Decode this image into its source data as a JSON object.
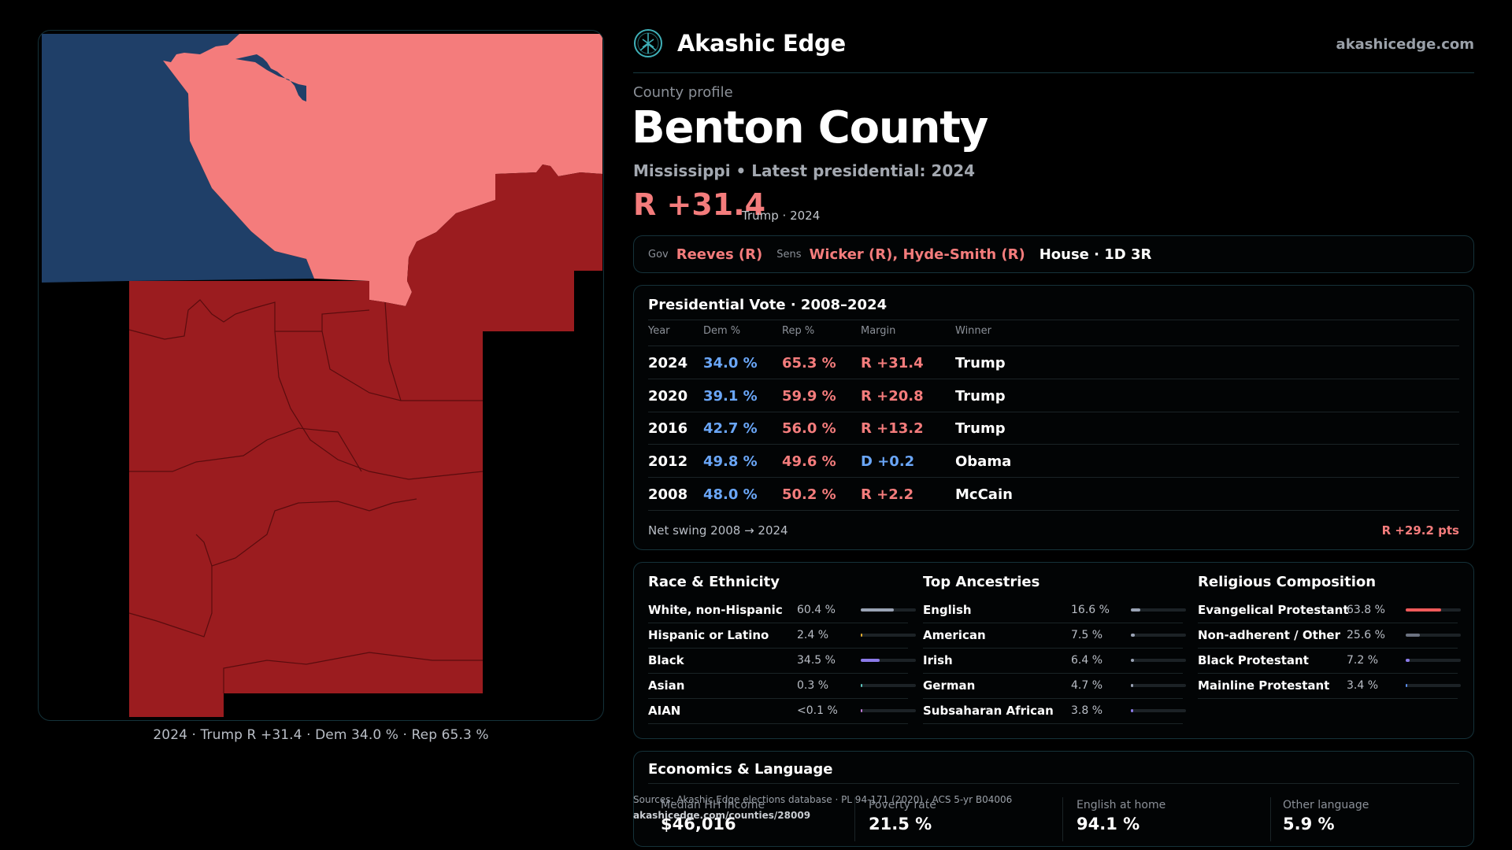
{
  "brand": {
    "name": "Akashic Edge",
    "url": "akashicedge.com",
    "logo_icon": "tree-of-life-icon"
  },
  "profile": {
    "kicker": "County profile",
    "county": "Benton County",
    "subtitle": "Mississippi • Latest presidential: 2024",
    "margin": "R +31.4",
    "margin_note": "Trump · 2024"
  },
  "officials": {
    "gov_label": "Gov",
    "gov": "Reeves (R)",
    "sens_label": "Sens",
    "sens": "Wicker (R), Hyde-Smith (R)",
    "house": "House · 1D 3R"
  },
  "presidential": {
    "title": "Presidential Vote · 2008–2024",
    "headers": [
      "Year",
      "Dem %",
      "Rep %",
      "Margin",
      "Winner"
    ],
    "rows": [
      {
        "year": "2024",
        "dem": "34.0 %",
        "rep": "65.3 %",
        "margin": "R +31.4",
        "winner": "Trump",
        "party": "R"
      },
      {
        "year": "2020",
        "dem": "39.1 %",
        "rep": "59.9 %",
        "margin": "R +20.8",
        "winner": "Trump",
        "party": "R"
      },
      {
        "year": "2016",
        "dem": "42.7 %",
        "rep": "56.0 %",
        "margin": "R +13.2",
        "winner": "Trump",
        "party": "R"
      },
      {
        "year": "2012",
        "dem": "49.8 %",
        "rep": "49.6 %",
        "margin": "D +0.2",
        "winner": "Obama",
        "party": "D"
      },
      {
        "year": "2008",
        "dem": "48.0 %",
        "rep": "50.2 %",
        "margin": "R +2.2",
        "winner": "McCain",
        "party": "R"
      }
    ],
    "swing_label": "Net swing 2008 → 2024",
    "swing_value": "R +29.2 pts"
  },
  "demographics": {
    "race": {
      "title": "Race & Ethnicity",
      "items": [
        {
          "label": "White, non-Hispanic",
          "value": "60.4 %",
          "share": 0.604,
          "color": "#9aa3b5"
        },
        {
          "label": "Hispanic or Latino",
          "value": "2.4 %",
          "share": 0.024,
          "color": "#e8b030"
        },
        {
          "label": "Black",
          "value": "34.5 %",
          "share": 0.345,
          "color": "#8b7ae8"
        },
        {
          "label": "Asian",
          "value": "0.3 %",
          "share": 0.003,
          "color": "#5fc8c0"
        },
        {
          "label": "AIAN",
          "value": "<0.1 %",
          "share": 0.0,
          "color": "#c07ad8"
        }
      ]
    },
    "ancestry": {
      "title": "Top Ancestries",
      "items": [
        {
          "label": "English",
          "value": "16.6 %",
          "share": 0.166,
          "color": "#9aa3b5"
        },
        {
          "label": "American",
          "value": "7.5 %",
          "share": 0.075,
          "color": "#9aa3b5"
        },
        {
          "label": "Irish",
          "value": "6.4 %",
          "share": 0.064,
          "color": "#9aa3b5"
        },
        {
          "label": "German",
          "value": "4.7 %",
          "share": 0.047,
          "color": "#9aa3b5"
        },
        {
          "label": "Subsaharan African",
          "value": "3.8 %",
          "share": 0.038,
          "color": "#8b7ae8"
        }
      ]
    },
    "religion": {
      "title": "Religious Composition",
      "items": [
        {
          "label": "Evangelical Protestant",
          "value": "63.8 %",
          "share": 0.638,
          "color": "#f05a5a"
        },
        {
          "label": "Non-adherent / Other",
          "value": "25.6 %",
          "share": 0.256,
          "color": "#6b7280"
        },
        {
          "label": "Black Protestant",
          "value": "7.2 %",
          "share": 0.072,
          "color": "#8b7ae8"
        },
        {
          "label": "Mainline Protestant",
          "value": "3.4 %",
          "share": 0.034,
          "color": "#5b8ef0"
        }
      ]
    }
  },
  "economics": {
    "title": "Economics & Language",
    "stats": [
      {
        "label": "Median HH income",
        "value": "$46,016"
      },
      {
        "label": "Poverty rate",
        "value": "21.5 %"
      },
      {
        "label": "English at home",
        "value": "94.1 %"
      },
      {
        "label": "Other language",
        "value": "5.9 %"
      }
    ]
  },
  "sources": {
    "line1": "Sources: Akashic Edge elections database · PL 94-171 (2020) · ACS 5-yr B04006",
    "line2": "akashicedge.com/counties/28009"
  },
  "map": {
    "caption": "2024 · Trump R +31.4 · Dem 34.0 % · Rep 65.3 %",
    "colors": {
      "dem": "#1f3f68",
      "lean_rep": "#f47c7c",
      "rep": "#9b1c1f",
      "border": "#5a0c0e"
    }
  }
}
